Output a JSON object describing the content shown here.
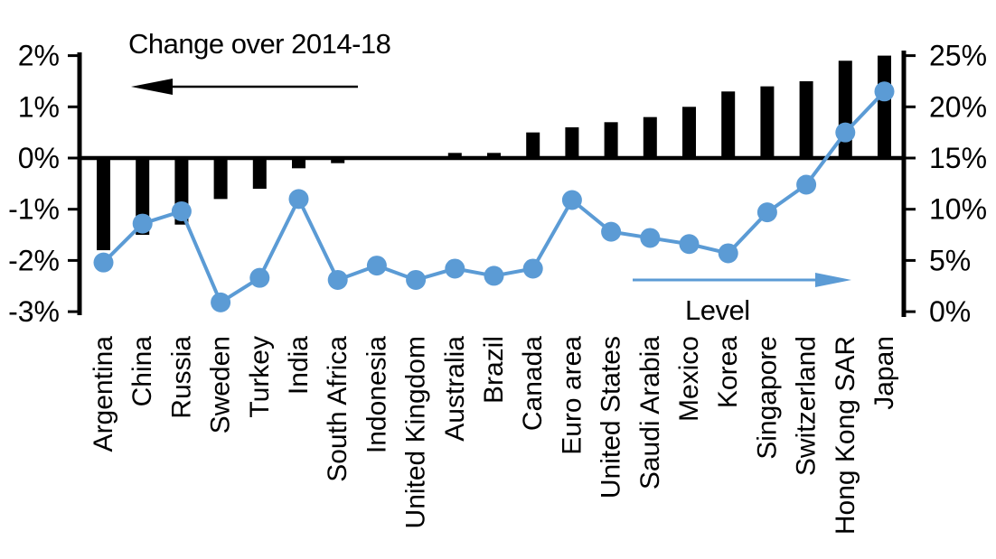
{
  "chart_data": {
    "type": "combo-bar-line",
    "categories": [
      "Argentina",
      "China",
      "Russia",
      "Sweden",
      "Turkey",
      "India",
      "South Africa",
      "Indonesia",
      "United Kingdom",
      "Australia",
      "Brazil",
      "Canada",
      "Euro area",
      "United States",
      "Saudi Arabia",
      "Mexico",
      "Korea",
      "Singapore",
      "Switzerland",
      "Hong Kong SAR",
      "Japan"
    ],
    "series": [
      {
        "name": "Change over 2014-18",
        "type": "bar",
        "axis": "left",
        "color": "#000000",
        "values": [
          -1.8,
          -1.5,
          -1.3,
          -0.8,
          -0.6,
          -0.2,
          -0.1,
          0.0,
          0.0,
          0.1,
          0.1,
          0.5,
          0.6,
          0.7,
          0.8,
          1.0,
          1.3,
          1.4,
          1.5,
          1.9,
          2.0
        ]
      },
      {
        "name": "Level",
        "type": "line",
        "axis": "right",
        "color": "#5B9BD5",
        "values": [
          4.8,
          8.6,
          9.8,
          0.9,
          3.3,
          11.0,
          3.1,
          4.5,
          3.1,
          4.2,
          3.5,
          4.2,
          10.9,
          7.8,
          7.2,
          6.6,
          5.7,
          9.7,
          12.4,
          17.5,
          21.5
        ]
      }
    ],
    "left_axis": {
      "tick_labels": [
        "2%",
        "1%",
        "0%",
        "-1%",
        "-2%",
        "-3%"
      ],
      "tick_values": [
        2,
        1,
        0,
        -1,
        -2,
        -3
      ],
      "range": [
        -3,
        2
      ]
    },
    "right_axis": {
      "tick_labels": [
        "25%",
        "20%",
        "15%",
        "10%",
        "5%",
        "0%"
      ],
      "tick_values": [
        25,
        20,
        15,
        10,
        5,
        0
      ],
      "range": [
        0,
        25
      ]
    },
    "grid": false,
    "legend_position": "in-plot-annotations",
    "annotations": [
      {
        "text": "Change over 2014-18",
        "arrow": "left",
        "color": "#000000"
      },
      {
        "text": "Level",
        "arrow": "right",
        "color": "#5B9BD5"
      }
    ]
  }
}
